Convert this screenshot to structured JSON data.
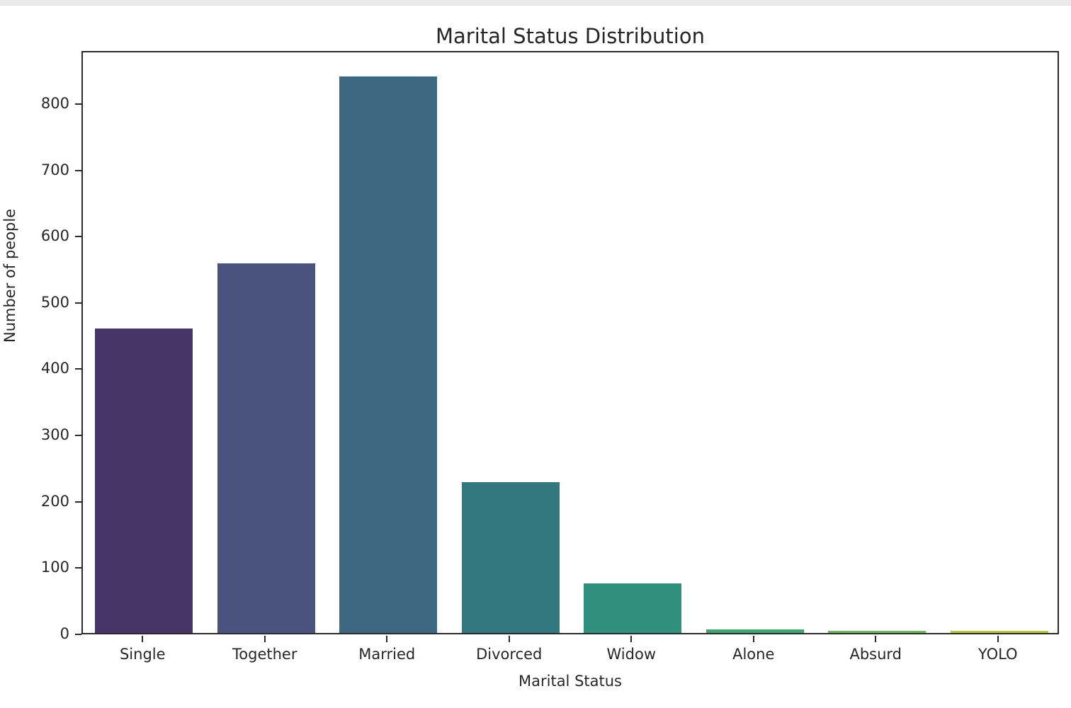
{
  "page": {
    "top_strip_color": "#eaeaea",
    "figure_background": "#ffffff",
    "spine_color": "#2b2b2b",
    "text_color": "#262626"
  },
  "chart_data": {
    "type": "bar",
    "title": "Marital Status Distribution",
    "xlabel": "Marital Status",
    "ylabel": "Number of people",
    "categories": [
      "Single",
      "Together",
      "Married",
      "Divorced",
      "Widow",
      "Alone",
      "Absurd",
      "YOLO"
    ],
    "values": [
      459,
      558,
      839,
      227,
      75,
      5,
      3,
      3
    ],
    "bar_colors": [
      "#483567",
      "#4A527E",
      "#3E6781",
      "#33787E",
      "#31907D",
      "#42A46F",
      "#6FBA61",
      "#B5C83E"
    ],
    "palette": "viridis-desaturated",
    "ylim": [
      0,
      880
    ],
    "yticks": [
      0,
      100,
      200,
      300,
      400,
      500,
      600,
      700,
      800
    ],
    "grid": false,
    "legend": null,
    "bar_width_fraction": 0.8
  }
}
